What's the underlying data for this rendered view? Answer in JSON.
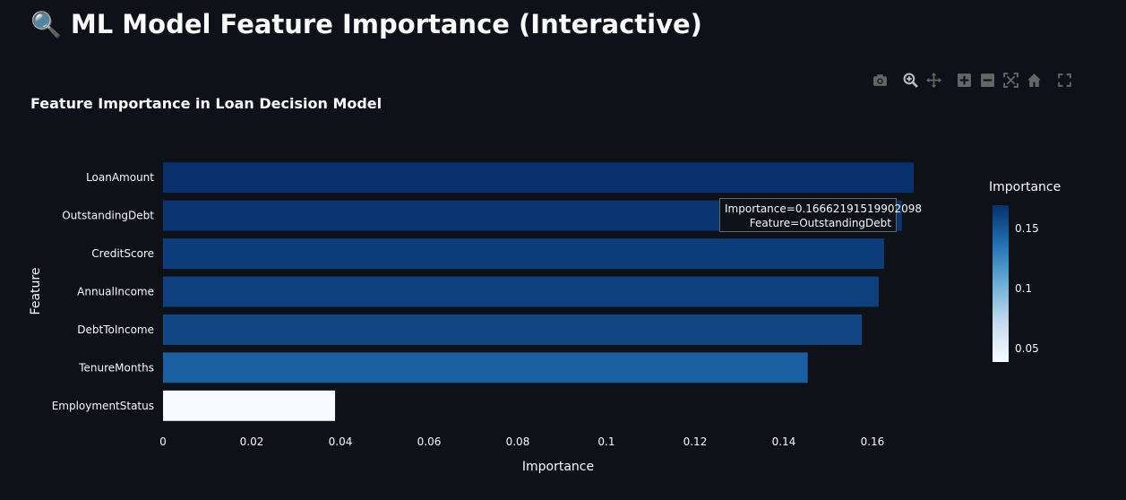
{
  "page": {
    "title_icon": "🔍",
    "title": "ML Model Feature Importance (Interactive)"
  },
  "modebar": {
    "buttons": [
      "camera-icon",
      "zoom-icon",
      "pan-icon",
      "zoom-in-icon",
      "zoom-out-icon",
      "autoscale-icon",
      "reset-axes-icon",
      "fullscreen-icon"
    ]
  },
  "tooltip": {
    "line1": "Importance=0.16662191519902098",
    "line2": "Feature=OutstandingDebt"
  },
  "colors": {
    "background": "#0e1117",
    "bar_high": "#08306b",
    "bar_low": "#f7fbff"
  },
  "chart_data": {
    "type": "bar",
    "orientation": "horizontal",
    "title": "Feature Importance in Loan Decision Model",
    "xlabel": "Importance",
    "ylabel": "Feature",
    "categories": [
      "LoanAmount",
      "OutstandingDebt",
      "CreditScore",
      "AnnualIncome",
      "DebtToIncome",
      "TenureMonths",
      "EmploymentStatus"
    ],
    "values": [
      0.1693,
      0.1666,
      0.1626,
      0.1614,
      0.1576,
      0.1454,
      0.0388
    ],
    "xlim": [
      0,
      0.1693
    ],
    "xticks": [
      "0",
      "0.02",
      "0.04",
      "0.06",
      "0.08",
      "0.1",
      "0.12",
      "0.14",
      "0.16"
    ],
    "colorbar": {
      "title": "Importance",
      "ticks": [
        "0.15",
        "0.1",
        "0.05"
      ],
      "tick_values": [
        0.15,
        0.1,
        0.05
      ],
      "range": [
        0.0388,
        0.1693
      ]
    },
    "grid": false
  }
}
